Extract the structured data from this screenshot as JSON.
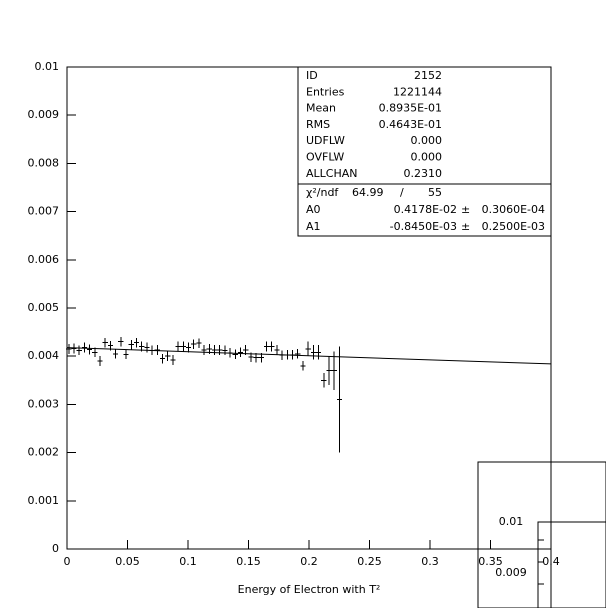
{
  "chart_data": {
    "type": "errorbar",
    "x_label": "Energy of Electron with T²",
    "xlim": [
      0,
      0.4
    ],
    "xticks": [
      0,
      0.05,
      0.1,
      0.15,
      0.2,
      0.25,
      0.3,
      0.35,
      0.4
    ],
    "ylim": [
      0,
      0.01
    ],
    "yticks": [
      0,
      0.001,
      0.002,
      0.003,
      0.004,
      0.005,
      0.006,
      0.007,
      0.008,
      0.009,
      0.01
    ],
    "color": "#000000",
    "bin_width": 0.0043,
    "x": [
      0.0015,
      0.0058,
      0.0101,
      0.0144,
      0.0187,
      0.023,
      0.0273,
      0.0316,
      0.0359,
      0.0402,
      0.0445,
      0.0488,
      0.0531,
      0.0574,
      0.0617,
      0.066,
      0.0703,
      0.0746,
      0.0789,
      0.0832,
      0.0875,
      0.0918,
      0.0961,
      0.1004,
      0.1047,
      0.109,
      0.1133,
      0.1176,
      0.1219,
      0.1262,
      0.1305,
      0.1348,
      0.1391,
      0.1434,
      0.1477,
      0.152,
      0.1563,
      0.1606,
      0.1649,
      0.1692,
      0.1735,
      0.1778,
      0.1821,
      0.1864,
      0.1907,
      0.195,
      0.1993,
      0.2036,
      0.2079,
      0.2122,
      0.2165,
      0.2208,
      0.2251
    ],
    "values": [
      0.00415,
      0.00416,
      0.00412,
      0.00418,
      0.00414,
      0.00408,
      0.0039,
      0.00428,
      0.00422,
      0.00405,
      0.0043,
      0.00404,
      0.00424,
      0.00428,
      0.0042,
      0.00418,
      0.00412,
      0.00413,
      0.00395,
      0.004,
      0.00392,
      0.0042,
      0.0042,
      0.00418,
      0.00425,
      0.00427,
      0.00413,
      0.00415,
      0.00413,
      0.00413,
      0.00412,
      0.00407,
      0.00404,
      0.00408,
      0.00413,
      0.00398,
      0.00397,
      0.00397,
      0.0042,
      0.0042,
      0.00413,
      0.00402,
      0.00403,
      0.00403,
      0.00405,
      0.0038,
      0.00415,
      0.00408,
      0.00408,
      0.0035,
      0.0037,
      0.0037,
      0.0031
    ],
    "errors": [
      0.0001,
      0.0001,
      0.0001,
      0.0001,
      0.0001,
      0.0001,
      0.0001,
      0.0001,
      0.0001,
      0.0001,
      0.0001,
      0.0001,
      0.0001,
      0.0001,
      0.0001,
      0.0001,
      0.0001,
      0.0001,
      0.0001,
      0.0001,
      0.0001,
      0.0001,
      0.0001,
      0.0001,
      0.0001,
      0.0001,
      0.0001,
      0.0001,
      0.0001,
      0.0001,
      0.0001,
      0.0001,
      0.0001,
      0.0001,
      0.0001,
      0.0001,
      0.0001,
      0.0001,
      0.0001,
      0.0001,
      0.0001,
      0.0001,
      0.0001,
      0.0001,
      0.0001,
      0.0001,
      0.00015,
      0.00015,
      0.00015,
      0.00015,
      0.0003,
      0.0004,
      0.0011
    ],
    "stats": [
      [
        "ID",
        "2152"
      ],
      [
        "Entries",
        "1221144"
      ],
      [
        "Mean",
        "0.8935E-01"
      ],
      [
        "RMS",
        "0.4643E-01"
      ],
      [
        "UDFLW",
        "0.000"
      ],
      [
        "OVFLW",
        "0.000"
      ],
      [
        "ALLCHAN",
        "0.2310"
      ]
    ],
    "fit": {
      "chi2_label": "χ²/ndf",
      "chi2": "64.99",
      "slash": "/",
      "ndf": "55",
      "a0": {
        "name": "A0",
        "value": 0.004178,
        "label": "0.4178E-02",
        "error": "0.3060E-04"
      },
      "a1": {
        "name": "A1",
        "value": -0.000845,
        "label": "-0.8450E-03",
        "error": "0.2500E-03"
      },
      "pm": "±"
    },
    "inset_labels": [
      "0.01",
      "0.009"
    ]
  }
}
